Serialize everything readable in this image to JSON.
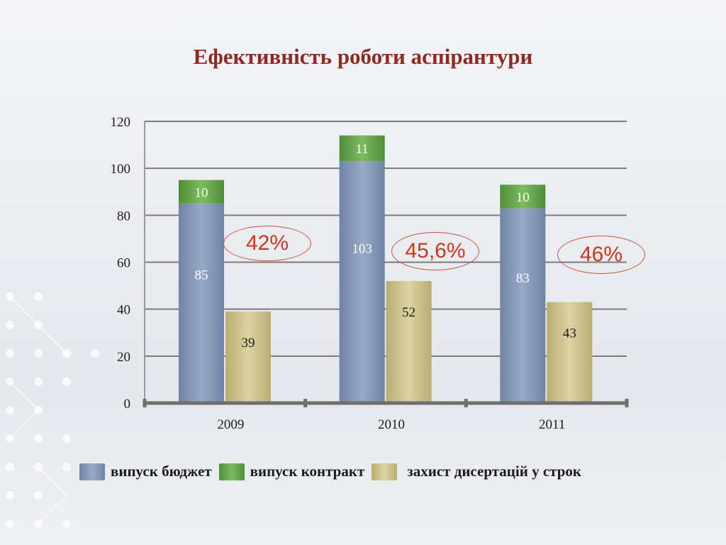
{
  "chart_data": {
    "type": "bar",
    "title": "Ефективність роботи аспірантури",
    "categories": [
      "2009",
      "2010",
      "2011"
    ],
    "series": [
      {
        "name": "випуск бюджет",
        "values": [
          85,
          103,
          83
        ],
        "color": "#8397b6",
        "stack": "graduates"
      },
      {
        "name": "випуск контракт",
        "values": [
          10,
          11,
          10
        ],
        "color": "#6aa84f",
        "stack": "graduates"
      },
      {
        "name": "захист дисертацій у строк",
        "values": [
          39,
          52,
          43
        ],
        "color": "#cdc28f",
        "stack": "defense"
      }
    ],
    "annotations": [
      "42%",
      "45,6%",
      "46%"
    ],
    "ylim": [
      0,
      120
    ],
    "yticks": [
      0,
      20,
      40,
      60,
      80,
      100,
      120
    ],
    "grid": true,
    "legend": "bottom"
  },
  "colors": {
    "title": "#8e2a22",
    "annotation": "#d1361b",
    "gridline": "#7b7b7b"
  }
}
